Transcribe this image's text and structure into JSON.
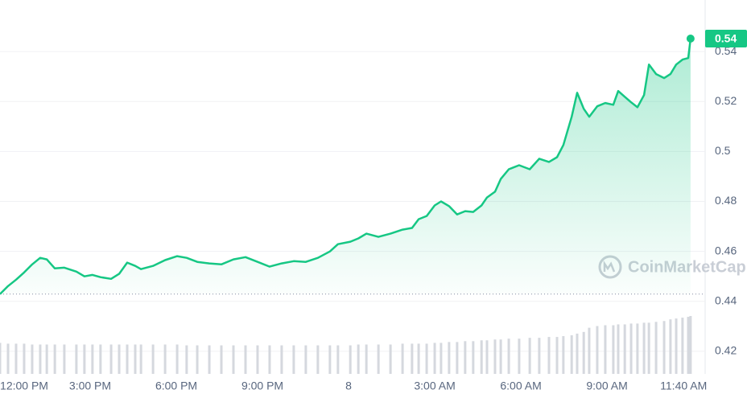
{
  "chart_data": {
    "type": "line",
    "x": [
      -0.14,
      0.14,
      0.42,
      0.7,
      0.98,
      1.26,
      1.49,
      1.77,
      2.1,
      2.52,
      2.8,
      3.08,
      3.36,
      3.73,
      4.01,
      4.29,
      4.57,
      4.77,
      5.19,
      5.61,
      6.03,
      6.36,
      6.73,
      7.15,
      7.57,
      7.99,
      8.41,
      8.83,
      9.25,
      9.67,
      10.09,
      10.51,
      10.93,
      11.35,
      11.63,
      12.06,
      12.34,
      12.62,
      13.04,
      13.46,
      13.88,
      14.21,
      14.44,
      14.72,
      15.0,
      15.22,
      15.5,
      15.78,
      16.06,
      16.34,
      16.63,
      16.82,
      17.1,
      17.3,
      17.58,
      17.94,
      18.31,
      18.64,
      18.98,
      19.26,
      19.48,
      19.77,
      19.96,
      20.19,
      20.38,
      20.66,
      20.94,
      21.22,
      21.39,
      21.62,
      21.84,
      22.06,
      22.29,
      22.46,
      22.71,
      22.99,
      23.21,
      23.41,
      23.63,
      23.83,
      23.91
    ],
    "series": [
      {
        "color": "#16c784",
        "values": [
          0.4429,
          0.4461,
          0.4487,
          0.4516,
          0.4548,
          0.4574,
          0.4568,
          0.4532,
          0.4535,
          0.4519,
          0.45,
          0.4506,
          0.4497,
          0.449,
          0.451,
          0.4555,
          0.4542,
          0.4529,
          0.4542,
          0.4565,
          0.4581,
          0.4574,
          0.4558,
          0.4552,
          0.4548,
          0.4568,
          0.4577,
          0.4558,
          0.4539,
          0.4552,
          0.4561,
          0.4558,
          0.4574,
          0.46,
          0.4629,
          0.4639,
          0.4652,
          0.4671,
          0.4658,
          0.4671,
          0.4687,
          0.4694,
          0.4729,
          0.4742,
          0.4784,
          0.48,
          0.4781,
          0.4748,
          0.4761,
          0.4758,
          0.4784,
          0.4816,
          0.4839,
          0.489,
          0.4929,
          0.4945,
          0.4929,
          0.4971,
          0.4958,
          0.4977,
          0.5026,
          0.5139,
          0.5235,
          0.5171,
          0.5139,
          0.5181,
          0.5194,
          0.5187,
          0.5242,
          0.5219,
          0.5197,
          0.5177,
          0.5226,
          0.5348,
          0.531,
          0.5294,
          0.531,
          0.5348,
          0.5368,
          0.5374,
          0.5452
        ]
      },
      {
        "color": "#d5d8de",
        "values": [
          37,
          36,
          36,
          36,
          35,
          35,
          35,
          35,
          35,
          35,
          35,
          35,
          35,
          35,
          35,
          35,
          35,
          35,
          35,
          35,
          35,
          34,
          34,
          34,
          34,
          34,
          34,
          34,
          34,
          34,
          34,
          34,
          34,
          34,
          34,
          34,
          35,
          35,
          35,
          35,
          36,
          36,
          36,
          36,
          37,
          37,
          38,
          38,
          39,
          39,
          40,
          40,
          41,
          41,
          42,
          42,
          43,
          43,
          44,
          44,
          45,
          46,
          48,
          50,
          55,
          57,
          58,
          58,
          59,
          59,
          60,
          60,
          61,
          61,
          62,
          63,
          65,
          66,
          67,
          68,
          69
        ]
      }
    ],
    "baseline": 0.4429,
    "price_tag": 0.54,
    "watermark": "CoinMarketCap",
    "xlim": [
      -0.14,
      24.25
    ],
    "xticks": [
      {
        "value": 0,
        "label": "12:00 PM"
      },
      {
        "value": 3,
        "label": "3:00 PM"
      },
      {
        "value": 6,
        "label": "6:00 PM"
      },
      {
        "value": 9,
        "label": "9:00 PM"
      },
      {
        "value": 12,
        "label": "8"
      },
      {
        "value": 15,
        "label": "3:00 AM"
      },
      {
        "value": 18,
        "label": "6:00 AM"
      },
      {
        "value": 21,
        "label": "9:00 AM"
      },
      {
        "value": 23.667,
        "label": "11:40 AM"
      }
    ],
    "ylim": [
      0.41,
      0.56
    ],
    "yticks": [
      0.42,
      0.44,
      0.46,
      0.48,
      0.5,
      0.52,
      0.54
    ],
    "grid": true
  }
}
